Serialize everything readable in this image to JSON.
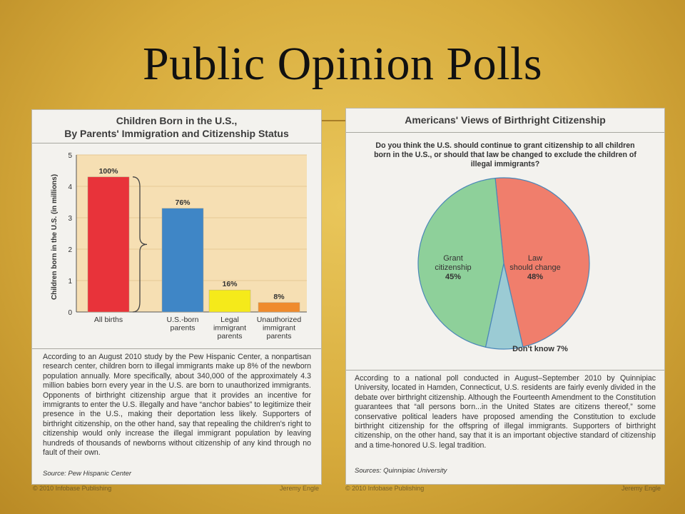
{
  "slide": {
    "title": "Public Opinion Polls"
  },
  "left": {
    "title_line1": "Children Born in the U.S.,",
    "title_line2": "By Parents' Immigration and Citizenship Status",
    "body": "According to an August 2010 study by the Pew Hispanic Center, a nonpartisan research center, children born to illegal immigrants make up 8% of the newborn population annually. More specifically, about 340,000 of the approximately 4.3 million babies born every year in the U.S. are born to unauthorized immigrants. Opponents of birthright citizenship argue that it provides an incentive for immigrants to enter the U.S. illegally and have “anchor babies” to legitimize their presence in the U.S., making their deportation less likely. Supporters of birthright citizenship, on the other hand, say that repealing the children's right to citizenship would only increase the illegal immigrant population by leaving hundreds of thousands of newborns without citizenship of any kind through no fault of their own.",
    "source": "Source: Pew Hispanic Center",
    "footer_left": "© 2010 Infobase Publishing",
    "footer_right": "Jeremy Engle"
  },
  "right": {
    "title": "Americans' Views of Birthright Citizenship",
    "question": "Do you think the U.S. should continue to grant citizenship to all children born in the U.S., or should that law be changed to exclude the children of illegal immigrants?",
    "body": "According to a national poll conducted in August–September 2010 by Quinnipiac University, located in Hamden, Connecticut, U.S. residents are fairly evenly divided in the debate over birthright citizenship. Although the Fourteenth Amendment to the Constitution guarantees that “all persons born...in the United States are citizens thereof,” some conservative political leaders have proposed amending the Constitution to exclude birthright citizenship for the offspring of illegal immigrants. Supporters of birthright citizenship, on the other hand, say that it is an important objective standard of citizenship and a time-honored U.S. legal tradition.",
    "source": "Sources: Quinnipiac University",
    "footer_left": "© 2010 Infobase Publishing",
    "footer_right": "Jeremy Engle"
  },
  "chart_data": [
    {
      "type": "bar",
      "title": "Children Born in the U.S., By Parents' Immigration and Citizenship Status",
      "ylabel": "Children born in the U.S. (in millions)",
      "xlabel": "",
      "ylim": [
        0,
        5
      ],
      "yticks": [
        "0",
        "1",
        "2",
        "3",
        "4",
        "5"
      ],
      "categories": [
        [
          "All births"
        ],
        [
          "U.S.-born",
          "parents"
        ],
        [
          "Legal",
          "immigrant",
          "parents"
        ],
        [
          "Unauthorized",
          "immigrant",
          "parents"
        ]
      ],
      "values": [
        4.3,
        3.3,
        0.7,
        0.3
      ],
      "labels": [
        "100%",
        "76%",
        "16%",
        "8%"
      ],
      "colors": [
        "#e8333a",
        "#3f86c6",
        "#f5ea1a",
        "#ef8b2d"
      ],
      "grid": true
    },
    {
      "type": "pie",
      "title": "Americans' Views of Birthright Citizenship",
      "slices": [
        {
          "name": "Law should change",
          "value": 48,
          "label_lines": [
            "Law",
            "should change"
          ],
          "pct_label": "48%",
          "color": "#f07e6c"
        },
        {
          "name": "Don't know",
          "value": 7,
          "label_lines": [
            "Don't know 7%"
          ],
          "pct_label": "",
          "color": "#9bcbd4"
        },
        {
          "name": "Grant citizenship",
          "value": 45,
          "label_lines": [
            "Grant",
            "citizenship"
          ],
          "pct_label": "45%",
          "color": "#8ed09a"
        }
      ]
    }
  ]
}
